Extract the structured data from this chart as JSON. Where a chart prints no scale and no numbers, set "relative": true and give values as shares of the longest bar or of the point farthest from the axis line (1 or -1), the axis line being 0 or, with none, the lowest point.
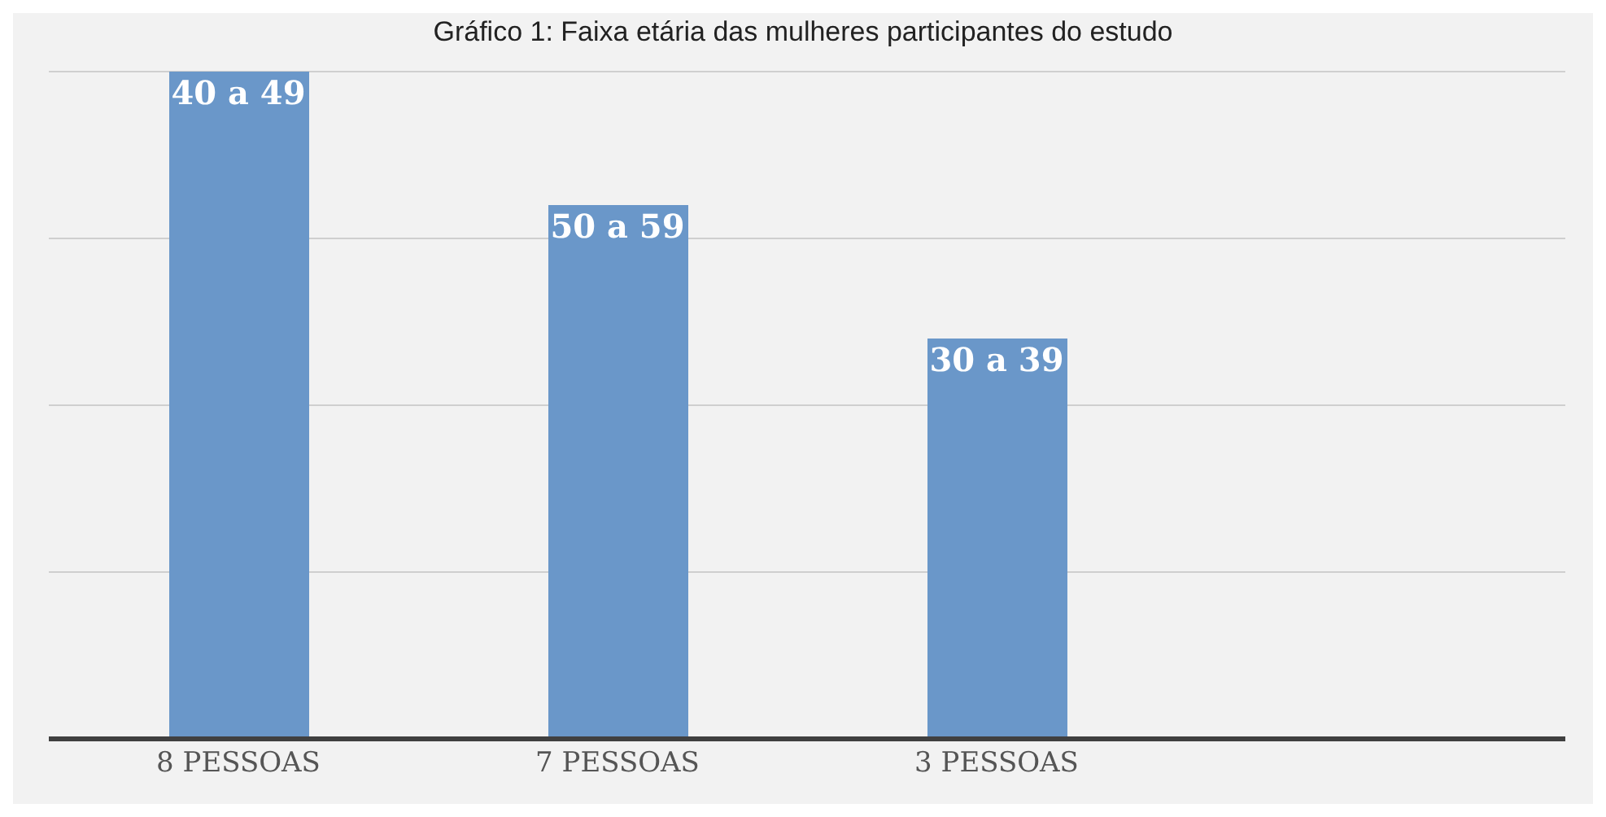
{
  "chart_data": {
    "type": "bar",
    "title": "Gráfico 1: Faixa etária das mulheres participantes do estudo",
    "categories": [
      "8 PESSOAS",
      "7 PESSOAS",
      "3 PESSOAS",
      null
    ],
    "values": [
      1,
      0.8,
      0.6,
      null
    ],
    "annotations": [
      {
        "text": "40 a 49",
        "x": "8 PESSOAS",
        "y": 1
      },
      {
        "text": "50 a 59",
        "x": "7 PESSOAS",
        "y": 0.8
      },
      {
        "text": "30 a 39",
        "x": "3 PESSOAS",
        "y": 0.6
      }
    ],
    "color": "#6a97c9",
    "relative": true,
    "grid": "y"
  }
}
